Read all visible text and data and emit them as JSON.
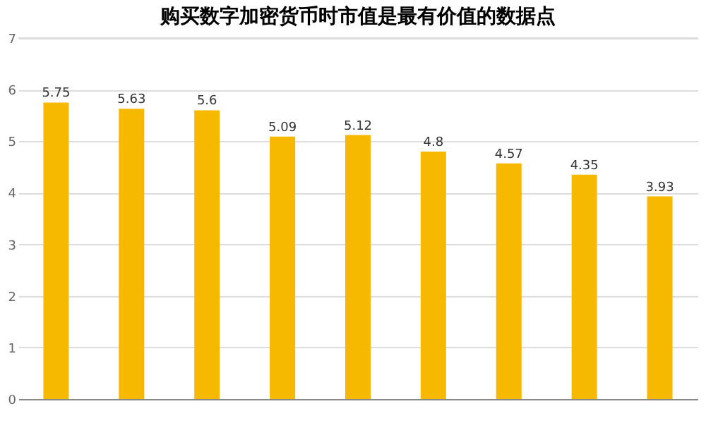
{
  "chart_data": {
    "type": "bar",
    "title": "购买数字加密货币时市值是最有价值的数据点",
    "categories": [
      null,
      null,
      null,
      null,
      null,
      null,
      null,
      null,
      null
    ],
    "values": [
      5.75,
      5.63,
      5.6,
      5.09,
      5.12,
      4.8,
      4.57,
      4.35,
      3.93
    ],
    "color": "#f7b900",
    "ylim": [
      0,
      7
    ],
    "yticks": [
      0,
      1,
      2,
      3,
      4,
      5,
      6,
      7
    ],
    "grid": "y",
    "data_labels": true
  }
}
